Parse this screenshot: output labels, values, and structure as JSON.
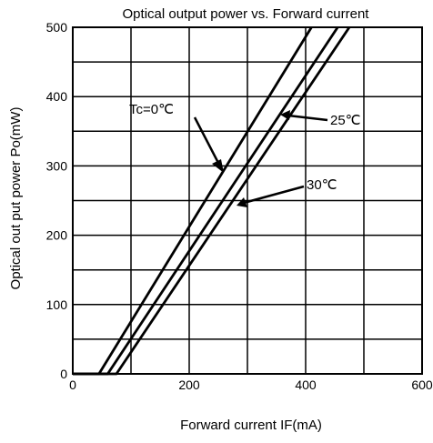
{
  "chart_data": {
    "type": "line",
    "title": "Optical output power vs. Forward current",
    "xlabel": "Forward current  IF(mA)",
    "ylabel": "Optical out put power  Po(mW)",
    "xlim": [
      0,
      600
    ],
    "ylim": [
      0,
      500
    ],
    "xticks": [
      0,
      200,
      400,
      600
    ],
    "yticks": [
      0,
      100,
      200,
      300,
      400,
      500
    ],
    "x_grid_step": 100,
    "y_grid_step": 50,
    "grid": true,
    "series": [
      {
        "name": "Tc=0℃",
        "points": [
          [
            0,
            0
          ],
          [
            45,
            0
          ],
          [
            410,
            500
          ]
        ]
      },
      {
        "name": "25℃",
        "points": [
          [
            0,
            0
          ],
          [
            60,
            0
          ],
          [
            455,
            500
          ]
        ]
      },
      {
        "name": "30℃",
        "points": [
          [
            0,
            0
          ],
          [
            75,
            0
          ],
          [
            475,
            500
          ]
        ]
      }
    ],
    "annotations": [
      {
        "text": "Tc=0℃",
        "series": 0
      },
      {
        "text": "25℃",
        "series": 1
      },
      {
        "text": "30℃",
        "series": 2
      }
    ]
  }
}
